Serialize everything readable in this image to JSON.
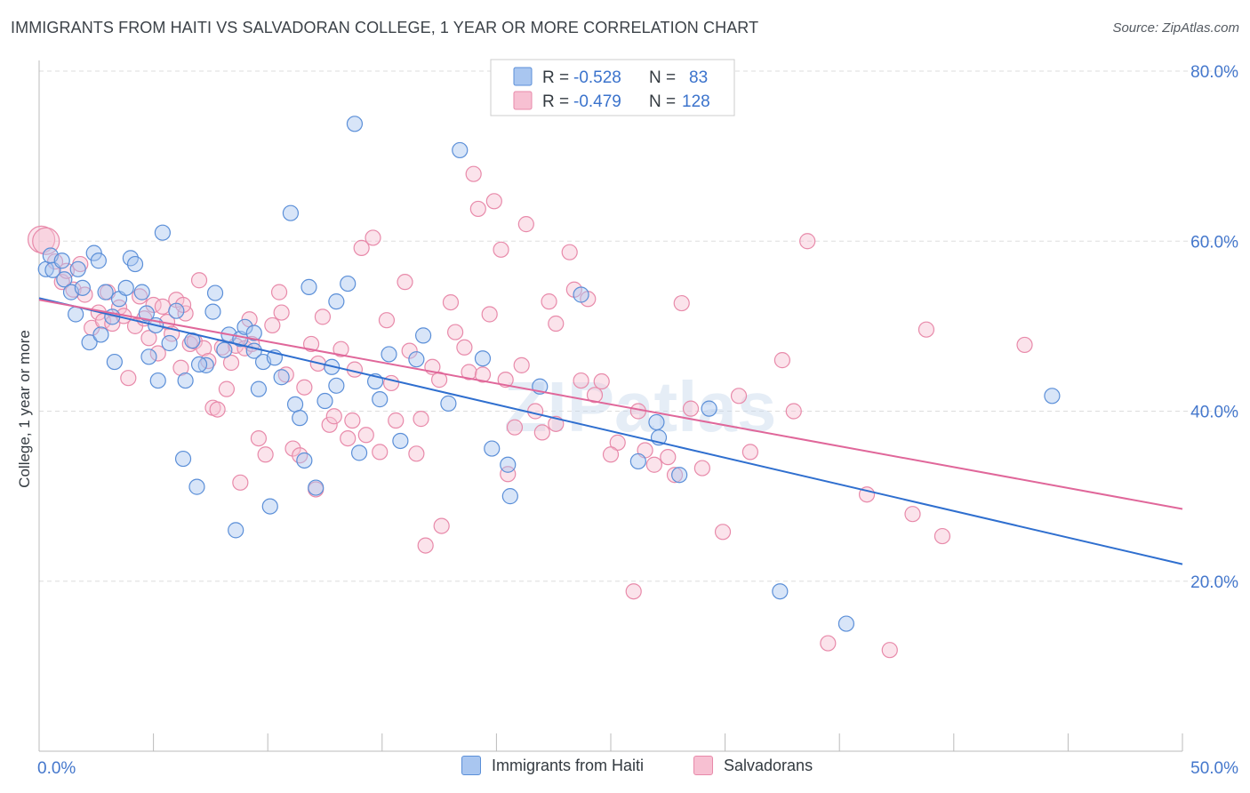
{
  "header": {
    "title": "IMMIGRANTS FROM HAITI VS SALVADORAN COLLEGE, 1 YEAR OR MORE CORRELATION CHART",
    "source": "Source: ZipAtlas.com"
  },
  "watermark": "ZIPatlas",
  "legend_top": {
    "rows": [
      {
        "r_label": "R =",
        "r_value": "-0.528",
        "n_label": "N =",
        "n_value": "83"
      },
      {
        "r_label": "R =",
        "r_value": "-0.479",
        "n_label": "N =",
        "n_value": "128"
      }
    ]
  },
  "colors": {
    "series1_fill": "#a9c6f0",
    "series1_stroke": "#5b8fd8",
    "series1_line": "#2f6fcf",
    "series2_fill": "#f7c0d2",
    "series2_stroke": "#e88aaa",
    "series2_line": "#e0679a",
    "tick_text": "#4477cc",
    "grid": "#dddddd"
  },
  "chart_data": {
    "type": "scatter",
    "title": "IMMIGRANTS FROM HAITI VS SALVADORAN COLLEGE, 1 YEAR OR MORE CORRELATION CHART",
    "xlabel": "",
    "ylabel": "College, 1 year or more",
    "xlim": [
      0,
      50
    ],
    "ylim": [
      0,
      80
    ],
    "x_tick_labels": [
      "0.0%",
      "50.0%"
    ],
    "y_ticks": [
      20,
      40,
      60,
      80
    ],
    "y_tick_labels": [
      "20.0%",
      "40.0%",
      "60.0%",
      "80.0%"
    ],
    "grid": "horizontal dashed",
    "legend_placement": "top-center",
    "series": [
      {
        "name": "Immigrants from Haiti",
        "R": -0.528,
        "N": 83,
        "trend": {
          "x": [
            0,
            50
          ],
          "y": [
            53.3,
            22.0
          ]
        },
        "points": [
          [
            0.3,
            56.7
          ],
          [
            0.5,
            58.3
          ],
          [
            0.6,
            56.6
          ],
          [
            1.0,
            57.7
          ],
          [
            1.1,
            55.5
          ],
          [
            1.4,
            54.0
          ],
          [
            1.6,
            51.4
          ],
          [
            1.7,
            56.7
          ],
          [
            2.2,
            48.1
          ],
          [
            2.4,
            58.6
          ],
          [
            2.6,
            57.7
          ],
          [
            2.9,
            54.0
          ],
          [
            3.3,
            45.8
          ],
          [
            3.5,
            53.2
          ],
          [
            3.8,
            54.5
          ],
          [
            4.0,
            58.0
          ],
          [
            4.2,
            57.3
          ],
          [
            4.5,
            54.0
          ],
          [
            4.8,
            46.4
          ],
          [
            5.2,
            43.6
          ],
          [
            5.4,
            61.0
          ],
          [
            5.7,
            48.0
          ],
          [
            6.0,
            51.8
          ],
          [
            6.3,
            34.4
          ],
          [
            6.4,
            43.6
          ],
          [
            6.7,
            48.3
          ],
          [
            6.9,
            31.1
          ],
          [
            7.3,
            45.4
          ],
          [
            7.6,
            51.7
          ],
          [
            7.7,
            53.9
          ],
          [
            8.1,
            47.2
          ],
          [
            8.3,
            49.0
          ],
          [
            8.6,
            26.0
          ],
          [
            8.8,
            48.5
          ],
          [
            9.0,
            49.9
          ],
          [
            9.4,
            47.1
          ],
          [
            9.6,
            42.6
          ],
          [
            9.8,
            45.8
          ],
          [
            10.1,
            28.8
          ],
          [
            10.3,
            46.3
          ],
          [
            10.6,
            44.0
          ],
          [
            11.0,
            63.3
          ],
          [
            11.2,
            40.8
          ],
          [
            11.6,
            34.2
          ],
          [
            11.8,
            54.6
          ],
          [
            12.1,
            31.0
          ],
          [
            12.5,
            41.2
          ],
          [
            12.8,
            45.2
          ],
          [
            13.0,
            52.9
          ],
          [
            13.5,
            55.0
          ],
          [
            13.8,
            73.8
          ],
          [
            14.0,
            35.1
          ],
          [
            14.7,
            43.5
          ],
          [
            14.9,
            41.4
          ],
          [
            15.3,
            46.7
          ],
          [
            15.8,
            36.5
          ],
          [
            16.5,
            46.1
          ],
          [
            16.8,
            48.9
          ],
          [
            17.9,
            40.9
          ],
          [
            18.4,
            70.7
          ],
          [
            19.4,
            46.2
          ],
          [
            19.8,
            35.6
          ],
          [
            20.5,
            33.7
          ],
          [
            20.6,
            30.0
          ],
          [
            21.9,
            42.9
          ],
          [
            23.7,
            53.7
          ],
          [
            26.2,
            34.1
          ],
          [
            27.0,
            38.7
          ],
          [
            27.1,
            36.9
          ],
          [
            28.0,
            32.5
          ],
          [
            29.3,
            40.3
          ],
          [
            32.4,
            18.8
          ],
          [
            35.3,
            15.0
          ],
          [
            44.3,
            41.8
          ],
          [
            4.7,
            51.5
          ],
          [
            1.9,
            54.5
          ],
          [
            9.4,
            49.2
          ],
          [
            11.4,
            39.2
          ],
          [
            3.2,
            51.1
          ],
          [
            5.1,
            50.1
          ],
          [
            7.0,
            45.5
          ],
          [
            13.0,
            43.0
          ],
          [
            2.7,
            49.0
          ]
        ]
      },
      {
        "name": "Salvadorans",
        "R": -0.479,
        "N": 128,
        "trend": {
          "x": [
            0,
            50
          ],
          "y": [
            53.1,
            28.5
          ]
        },
        "points": [
          [
            0.1,
            60.2
          ],
          [
            0.3,
            60.0
          ],
          [
            0.7,
            57.6
          ],
          [
            1.0,
            55.2
          ],
          [
            1.2,
            56.5
          ],
          [
            1.5,
            54.3
          ],
          [
            1.8,
            57.3
          ],
          [
            2.0,
            53.7
          ],
          [
            2.3,
            49.8
          ],
          [
            2.6,
            51.6
          ],
          [
            2.8,
            50.6
          ],
          [
            3.0,
            54.0
          ],
          [
            3.2,
            50.3
          ],
          [
            3.5,
            52.2
          ],
          [
            3.7,
            51.2
          ],
          [
            3.9,
            43.9
          ],
          [
            4.2,
            50.0
          ],
          [
            4.4,
            53.5
          ],
          [
            4.6,
            50.9
          ],
          [
            4.8,
            48.6
          ],
          [
            5.0,
            52.5
          ],
          [
            5.2,
            46.8
          ],
          [
            5.4,
            52.3
          ],
          [
            5.6,
            50.5
          ],
          [
            5.8,
            49.1
          ],
          [
            6.0,
            53.1
          ],
          [
            6.2,
            45.1
          ],
          [
            6.4,
            51.5
          ],
          [
            6.6,
            47.9
          ],
          [
            6.8,
            48.2
          ],
          [
            7.0,
            55.4
          ],
          [
            7.2,
            47.4
          ],
          [
            7.4,
            45.9
          ],
          [
            7.6,
            40.4
          ],
          [
            7.8,
            40.2
          ],
          [
            8.0,
            47.5
          ],
          [
            8.2,
            42.6
          ],
          [
            8.4,
            45.7
          ],
          [
            8.6,
            47.7
          ],
          [
            8.8,
            31.6
          ],
          [
            9.0,
            47.4
          ],
          [
            9.3,
            47.9
          ],
          [
            9.6,
            36.8
          ],
          [
            9.9,
            34.9
          ],
          [
            10.2,
            50.1
          ],
          [
            10.5,
            54.0
          ],
          [
            10.6,
            51.6
          ],
          [
            10.8,
            44.3
          ],
          [
            11.1,
            35.6
          ],
          [
            11.4,
            34.8
          ],
          [
            11.6,
            42.8
          ],
          [
            11.9,
            47.9
          ],
          [
            12.1,
            30.8
          ],
          [
            12.4,
            51.1
          ],
          [
            12.7,
            38.4
          ],
          [
            12.9,
            39.4
          ],
          [
            13.2,
            47.3
          ],
          [
            13.5,
            36.8
          ],
          [
            13.8,
            44.9
          ],
          [
            14.1,
            59.2
          ],
          [
            14.3,
            37.2
          ],
          [
            14.6,
            60.4
          ],
          [
            14.9,
            35.2
          ],
          [
            15.2,
            50.7
          ],
          [
            15.4,
            43.3
          ],
          [
            15.6,
            38.9
          ],
          [
            16.0,
            55.2
          ],
          [
            16.2,
            47.1
          ],
          [
            16.5,
            35.0
          ],
          [
            16.7,
            39.1
          ],
          [
            16.9,
            24.2
          ],
          [
            17.2,
            45.2
          ],
          [
            17.5,
            43.7
          ],
          [
            17.6,
            26.5
          ],
          [
            18.0,
            52.8
          ],
          [
            18.2,
            49.3
          ],
          [
            18.6,
            47.5
          ],
          [
            18.8,
            44.6
          ],
          [
            19.0,
            67.9
          ],
          [
            19.2,
            63.8
          ],
          [
            19.4,
            44.3
          ],
          [
            19.7,
            51.4
          ],
          [
            19.9,
            64.7
          ],
          [
            20.2,
            59.0
          ],
          [
            20.4,
            43.7
          ],
          [
            20.5,
            32.6
          ],
          [
            20.8,
            38.1
          ],
          [
            21.1,
            45.4
          ],
          [
            21.3,
            62.0
          ],
          [
            21.7,
            40.0
          ],
          [
            22.0,
            37.5
          ],
          [
            22.3,
            52.9
          ],
          [
            22.6,
            38.5
          ],
          [
            23.2,
            58.7
          ],
          [
            23.4,
            54.3
          ],
          [
            23.7,
            43.6
          ],
          [
            24.0,
            53.2
          ],
          [
            24.3,
            41.9
          ],
          [
            24.6,
            43.5
          ],
          [
            25.3,
            36.3
          ],
          [
            26.0,
            18.8
          ],
          [
            26.2,
            40.0
          ],
          [
            26.5,
            35.4
          ],
          [
            26.9,
            33.7
          ],
          [
            27.5,
            34.6
          ],
          [
            27.8,
            32.5
          ],
          [
            28.1,
            52.7
          ],
          [
            28.5,
            40.3
          ],
          [
            29.0,
            33.3
          ],
          [
            29.9,
            25.8
          ],
          [
            30.6,
            41.8
          ],
          [
            31.1,
            35.2
          ],
          [
            32.5,
            46.0
          ],
          [
            33.6,
            60.0
          ],
          [
            34.5,
            12.7
          ],
          [
            36.2,
            30.2
          ],
          [
            37.2,
            11.9
          ],
          [
            38.2,
            27.9
          ],
          [
            38.8,
            49.6
          ],
          [
            39.5,
            25.3
          ],
          [
            43.1,
            47.8
          ],
          [
            12.2,
            45.6
          ],
          [
            25.0,
            34.9
          ],
          [
            6.3,
            52.5
          ],
          [
            22.6,
            50.3
          ],
          [
            33.0,
            40.0
          ],
          [
            13.7,
            38.9
          ],
          [
            9.2,
            50.8
          ]
        ]
      }
    ]
  }
}
